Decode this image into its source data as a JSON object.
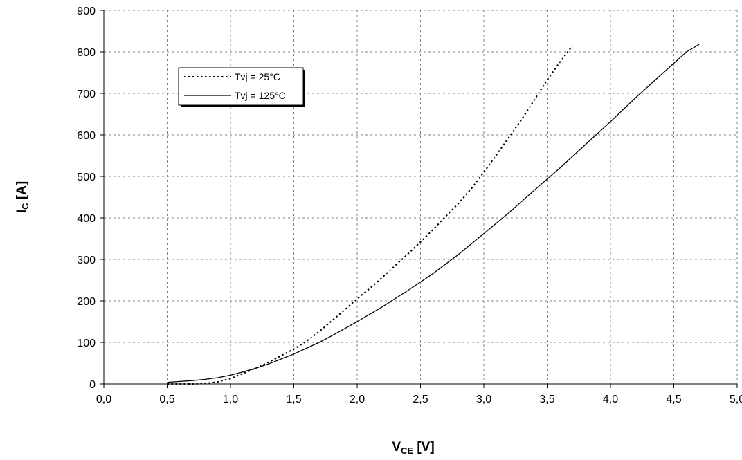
{
  "chart_data": {
    "type": "line",
    "xlabel": {
      "main": "V",
      "sub": "CE",
      "unit": " [V]"
    },
    "ylabel": {
      "main": "I",
      "sub": "C",
      "unit": " [A]"
    },
    "xlim": [
      0,
      5.0
    ],
    "ylim": [
      0,
      900
    ],
    "x_ticks": [
      {
        "value": 0.0,
        "label": "0,0"
      },
      {
        "value": 0.5,
        "label": "0,5"
      },
      {
        "value": 1.0,
        "label": "1,0"
      },
      {
        "value": 1.5,
        "label": "1,5"
      },
      {
        "value": 2.0,
        "label": "2,0"
      },
      {
        "value": 2.5,
        "label": "2,5"
      },
      {
        "value": 3.0,
        "label": "3,0"
      },
      {
        "value": 3.5,
        "label": "3,5"
      },
      {
        "value": 4.0,
        "label": "4,0"
      },
      {
        "value": 4.5,
        "label": "4,5"
      },
      {
        "value": 5.0,
        "label": "5,0"
      }
    ],
    "y_ticks": [
      {
        "value": 0,
        "label": "0"
      },
      {
        "value": 100,
        "label": "100"
      },
      {
        "value": 200,
        "label": "200"
      },
      {
        "value": 300,
        "label": "300"
      },
      {
        "value": 400,
        "label": "400"
      },
      {
        "value": 500,
        "label": "500"
      },
      {
        "value": 600,
        "label": "600"
      },
      {
        "value": 700,
        "label": "700"
      },
      {
        "value": 800,
        "label": "800"
      },
      {
        "value": 900,
        "label": "900"
      }
    ],
    "grid": true,
    "legend_position": "top-left",
    "series": [
      {
        "name": "Tvj = 25°C",
        "style": "dotted",
        "color": "#000000",
        "x": [
          0.5,
          0.7,
          0.8,
          0.9,
          1.0,
          1.1,
          1.2,
          1.3,
          1.4,
          1.5,
          1.6,
          1.7,
          1.8,
          1.9,
          2.0,
          2.1,
          2.2,
          2.3,
          2.4,
          2.5,
          2.6,
          2.7,
          2.8,
          2.9,
          3.0,
          3.1,
          3.2,
          3.3,
          3.4,
          3.5,
          3.6,
          3.7
        ],
        "y": [
          0,
          0,
          1,
          5,
          13,
          25,
          38,
          52,
          68,
          84,
          103,
          126,
          152,
          178,
          205,
          230,
          257,
          285,
          313,
          342,
          372,
          404,
          435,
          470,
          510,
          552,
          595,
          638,
          685,
          732,
          775,
          815
        ]
      },
      {
        "name": "Tvj = 125°C",
        "style": "solid",
        "color": "#000000",
        "x": [
          0.5,
          0.6,
          0.7,
          0.8,
          0.9,
          1.0,
          1.1,
          1.2,
          1.3,
          1.4,
          1.5,
          1.6,
          1.7,
          1.8,
          1.9,
          2.0,
          2.2,
          2.4,
          2.6,
          2.8,
          3.0,
          3.2,
          3.4,
          3.6,
          3.8,
          4.0,
          4.2,
          4.4,
          4.6,
          4.7
        ],
        "y": [
          4,
          6,
          8,
          11,
          15,
          21,
          29,
          38,
          48,
          60,
          72,
          86,
          100,
          116,
          133,
          150,
          186,
          225,
          266,
          312,
          362,
          413,
          467,
          520,
          576,
          632,
          690,
          745,
          800,
          818
        ]
      }
    ]
  }
}
